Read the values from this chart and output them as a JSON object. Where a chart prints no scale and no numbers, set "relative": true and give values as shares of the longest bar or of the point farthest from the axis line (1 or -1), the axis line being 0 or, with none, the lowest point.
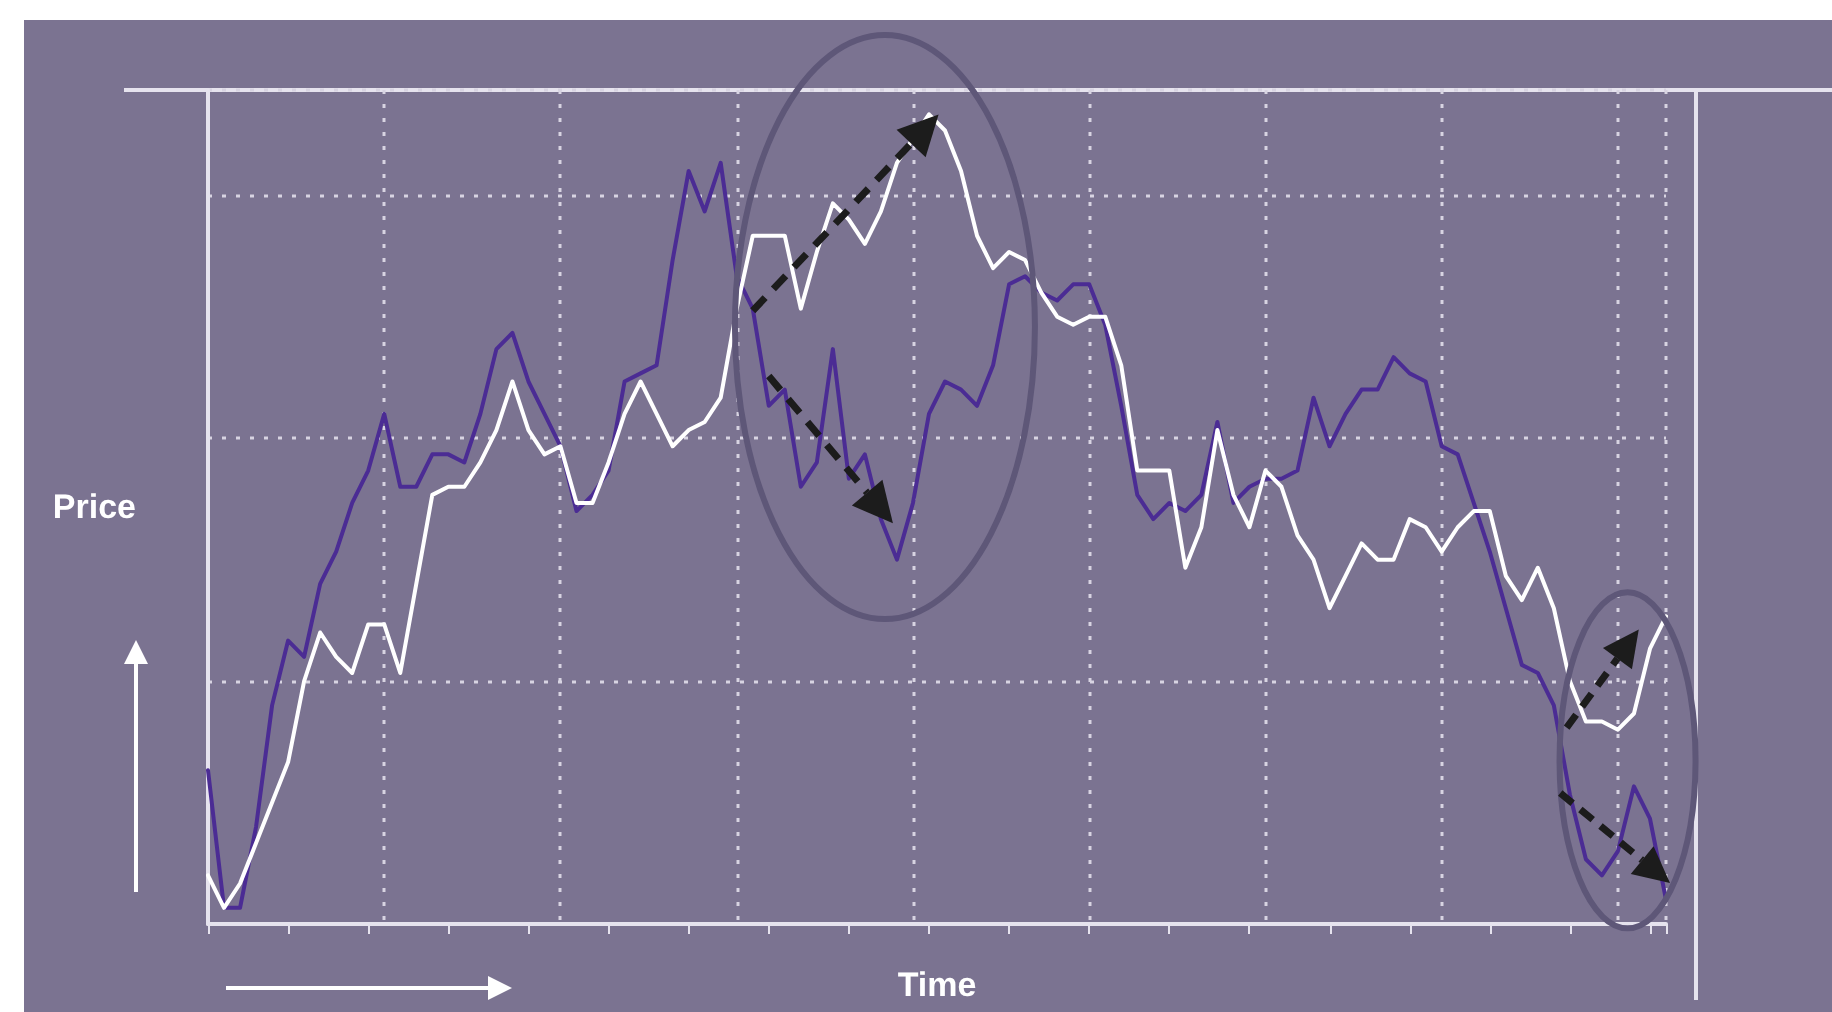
{
  "chart_data": {
    "type": "line",
    "xlabel": "Time",
    "ylabel": "Price",
    "relative": true,
    "grid": true,
    "categories": [
      null,
      null,
      null,
      null,
      null,
      null,
      null,
      null,
      null,
      null,
      null,
      null,
      null,
      null,
      null,
      null,
      null,
      null,
      null,
      null,
      null,
      null,
      null,
      null,
      null,
      null,
      null,
      null,
      null,
      null,
      null,
      null,
      null,
      null,
      null,
      null,
      null,
      null,
      null,
      null,
      null,
      null,
      null,
      null,
      null,
      null,
      null,
      null,
      null,
      null,
      null,
      null,
      null,
      null,
      null,
      null,
      null,
      null,
      null,
      null,
      null,
      null,
      null,
      null,
      null,
      null,
      null,
      null,
      null,
      null,
      null,
      null,
      null,
      null,
      null,
      null,
      null,
      null,
      null,
      null,
      null,
      null,
      null,
      null,
      null,
      null,
      null,
      null,
      null,
      null,
      null,
      null
    ],
    "series": [
      {
        "color": "#4b2c94",
        "values": [
          0.19,
          0.02,
          0.02,
          0.12,
          0.27,
          0.35,
          0.33,
          0.42,
          0.46,
          0.52,
          0.56,
          0.63,
          0.54,
          0.54,
          0.58,
          0.58,
          0.57,
          0.63,
          0.71,
          0.73,
          0.67,
          0.63,
          0.59,
          0.51,
          0.53,
          0.56,
          0.67,
          0.68,
          0.69,
          0.82,
          0.93,
          0.88,
          0.94,
          0.8,
          0.76,
          0.64,
          0.66,
          0.54,
          0.57,
          0.71,
          0.55,
          0.58,
          0.5,
          0.45,
          0.52,
          0.63,
          0.67,
          0.66,
          0.64,
          0.69,
          0.79,
          0.8,
          0.78,
          0.77,
          0.79,
          0.79,
          0.74,
          0.64,
          0.53,
          0.5,
          0.52,
          0.51,
          0.53,
          0.62,
          0.52,
          0.54,
          0.55,
          0.55,
          0.56,
          0.65,
          0.59,
          0.63,
          0.66,
          0.66,
          0.7,
          0.68,
          0.67,
          0.59,
          0.58,
          0.52,
          0.46,
          0.39,
          0.32,
          0.31,
          0.27,
          0.16,
          0.08,
          0.06,
          0.09,
          0.17,
          0.13,
          0.03
        ]
      },
      {
        "color": "#ffffff",
        "values": [
          0.06,
          0.02,
          0.05,
          0.1,
          0.15,
          0.2,
          0.3,
          0.36,
          0.33,
          0.31,
          0.37,
          0.37,
          0.31,
          0.42,
          0.53,
          0.54,
          0.54,
          0.57,
          0.61,
          0.67,
          0.61,
          0.58,
          0.59,
          0.52,
          0.52,
          0.57,
          0.63,
          0.67,
          0.63,
          0.59,
          0.61,
          0.62,
          0.65,
          0.76,
          0.85,
          0.85,
          0.85,
          0.76,
          0.83,
          0.89,
          0.87,
          0.84,
          0.88,
          0.94,
          0.97,
          1.0,
          0.98,
          0.93,
          0.85,
          0.81,
          0.83,
          0.82,
          0.78,
          0.75,
          0.74,
          0.75,
          0.75,
          0.69,
          0.56,
          0.56,
          0.56,
          0.44,
          0.49,
          0.61,
          0.53,
          0.49,
          0.56,
          0.54,
          0.48,
          0.45,
          0.39,
          0.43,
          0.47,
          0.45,
          0.45,
          0.5,
          0.49,
          0.46,
          0.49,
          0.51,
          0.51,
          0.43,
          0.4,
          0.44,
          0.39,
          0.3,
          0.25,
          0.25,
          0.24,
          0.26,
          0.34,
          0.38
        ]
      }
    ]
  }
}
